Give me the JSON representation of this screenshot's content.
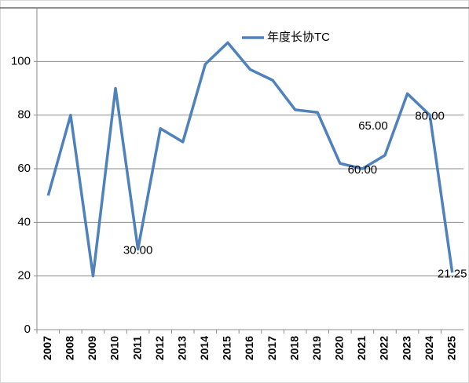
{
  "chart_data": {
    "type": "line",
    "categories": [
      "2007",
      "2008",
      "2009",
      "2010",
      "2011",
      "2012",
      "2013",
      "2014",
      "2015",
      "2016",
      "2017",
      "2018",
      "2019",
      "2020",
      "2021",
      "2022",
      "2023",
      "2024",
      "2025"
    ],
    "series": [
      {
        "name": "年度长协TC",
        "color": "#4f81bd",
        "values": [
          50,
          80,
          20,
          90,
          30,
          75,
          70,
          99,
          107,
          97,
          93,
          82,
          81,
          62,
          60,
          65,
          88,
          80,
          21.25
        ],
        "value_labels": [
          null,
          null,
          null,
          null,
          "30.00",
          null,
          null,
          null,
          null,
          null,
          null,
          null,
          null,
          null,
          "60.00",
          "65.00",
          null,
          "80.00",
          "21.25"
        ]
      }
    ],
    "ylim": [
      0,
      120
    ],
    "yticks": [
      0,
      20,
      40,
      60,
      80,
      100
    ],
    "grid": true,
    "legend": "top"
  }
}
